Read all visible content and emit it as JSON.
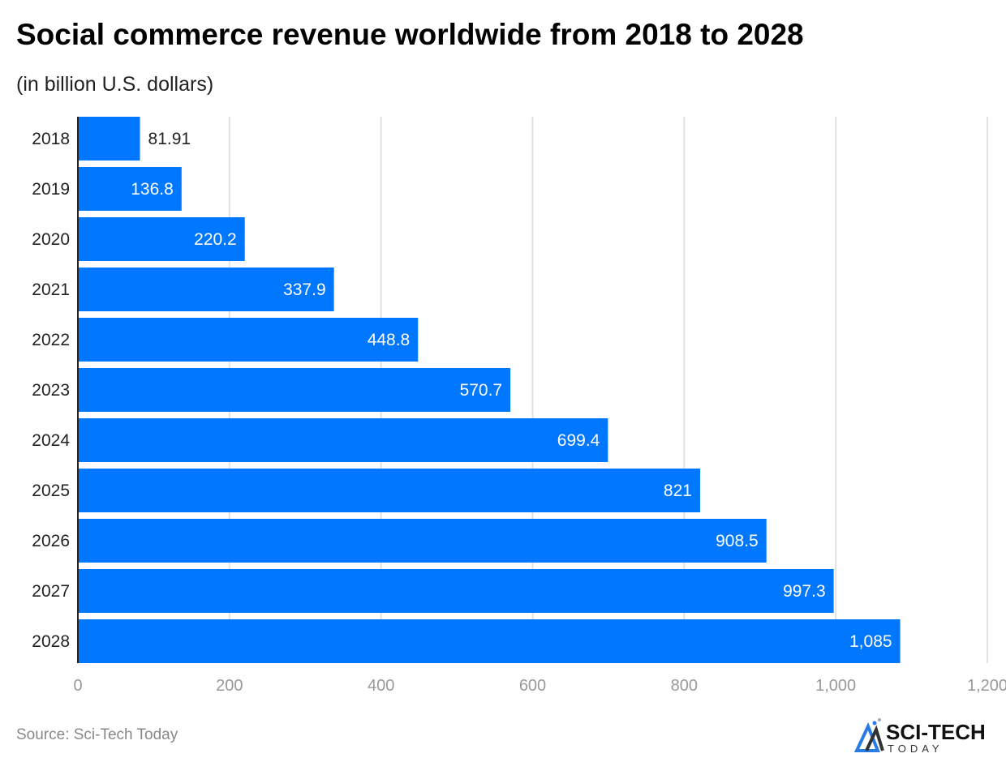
{
  "chart_data": {
    "type": "bar",
    "orientation": "horizontal",
    "title": "Social commerce revenue worldwide from 2018 to 2028",
    "subtitle": "(in billion U.S. dollars)",
    "categories": [
      "2018",
      "2019",
      "2020",
      "2021",
      "2022",
      "2023",
      "2024",
      "2025",
      "2026",
      "2027",
      "2028"
    ],
    "values": [
      81.91,
      136.8,
      220.2,
      337.9,
      448.8,
      570.7,
      699.4,
      821,
      908.5,
      997.3,
      1085
    ],
    "data_labels": [
      "81.91",
      "136.8",
      "220.2",
      "337.9",
      "448.8",
      "570.7",
      "699.4",
      "821",
      "908.5",
      "997.3",
      "1,085"
    ],
    "xlim": [
      0,
      1200
    ],
    "x_ticks": [
      0,
      200,
      400,
      600,
      800,
      1000,
      1200
    ],
    "x_tick_labels": [
      "0",
      "200",
      "400",
      "600",
      "800",
      "1,000",
      "1,200"
    ],
    "grid": true,
    "bar_color": "#0077FF"
  },
  "source": "Source: Sci-Tech Today",
  "logo": {
    "text": "SCI-TECH",
    "subtext": "TODAY"
  }
}
